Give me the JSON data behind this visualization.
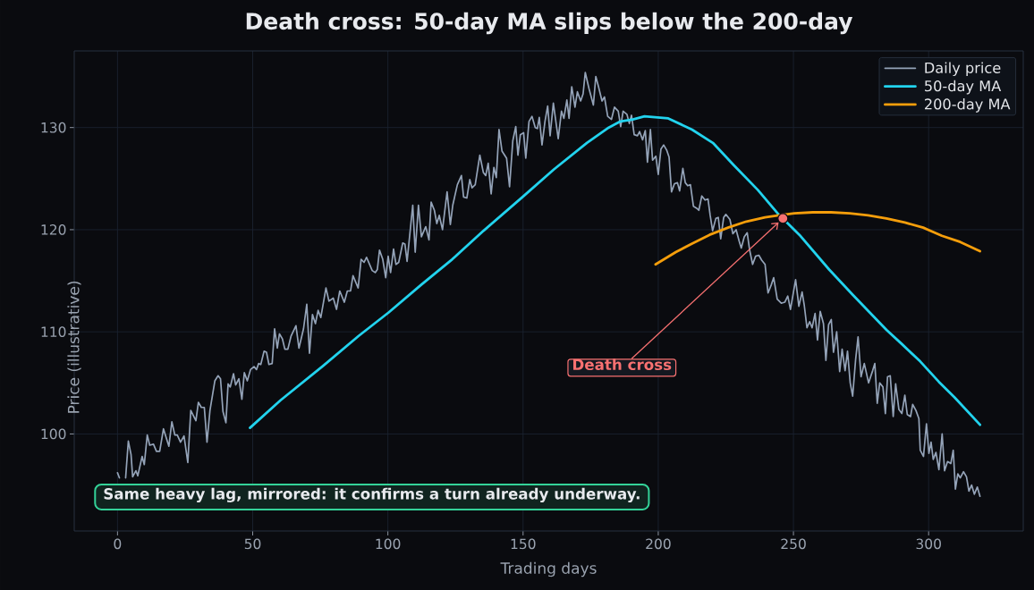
{
  "chart_data": {
    "type": "line",
    "title": "Death cross: 50-day MA slips below the 200-day",
    "xlabel": "Trading days",
    "ylabel": "Price (illustrative)",
    "xlim": [
      -16,
      335
    ],
    "ylim": [
      90.5,
      137.5
    ],
    "xticks": [
      0,
      50,
      100,
      150,
      200,
      250,
      300
    ],
    "yticks": [
      100,
      110,
      120,
      130
    ],
    "grid": true,
    "legend": "top right",
    "series": [
      {
        "name": "Daily price",
        "color": "#94a3b8",
        "x": [
          0,
          0.7,
          1.8,
          3.0,
          4.0,
          5.0,
          5.6,
          6.8,
          7.5,
          9.1,
          9.9,
          11.0,
          11.9,
          13.3,
          14.4,
          15.6,
          17.0,
          19.0,
          20.1,
          21.2,
          22.1,
          23.3,
          24.6,
          26.0,
          27.1,
          29.0,
          29.9,
          31.0,
          32.1,
          33.1,
          34.2,
          36.0,
          37.2,
          38.1,
          39.0,
          40.1,
          40.9,
          41.7,
          42.9,
          43.7,
          44.9,
          46.0,
          46.9,
          48.0,
          49.2,
          50.5,
          51.4,
          52.2,
          53.0,
          54.2,
          55.1,
          56.0,
          57.2,
          58.1,
          59.1,
          59.9,
          61.0,
          61.9,
          63.0,
          64.2,
          66.0,
          67.1,
          68.8,
          70.0,
          71.0,
          72.1,
          73.2,
          74.2,
          75.2,
          77.1,
          78.2,
          79.8,
          81.0,
          82.2,
          83.9,
          85.0,
          86.2,
          87.1,
          89.0,
          90.1,
          91.2,
          92.1,
          94.2,
          95.3,
          96.1,
          96.9,
          98.1,
          99.2,
          100.1,
          101.0,
          102.1,
          103.0,
          104.0,
          105.5,
          106.3,
          107.1,
          109.2,
          110.1,
          111.3,
          112.4,
          114.0,
          115.2,
          116.0,
          117.2,
          118.1,
          119.0,
          120.2,
          121.9,
          123.1,
          124.0,
          125.7,
          127.2,
          128.0,
          129.2,
          130.3,
          131.1,
          132.3,
          134.0,
          135.3,
          136.2,
          137.1,
          138.2,
          139.2,
          140.1,
          141.1,
          142.2,
          143.9,
          145.0,
          146.2,
          147.3,
          148.1,
          149.0,
          150.2,
          151.0,
          152.2,
          153.3,
          154.5,
          155.3,
          156.0,
          157.0,
          158.1,
          159.1,
          160.0,
          161.2,
          163.0,
          164.2,
          165.1,
          166.2,
          167.0,
          168.0,
          169.2,
          170.1,
          171.3,
          172.2,
          173.0,
          174.4,
          176.0,
          176.9,
          177.8,
          179.2,
          180.1,
          181.3,
          182.7,
          183.8,
          185.2,
          186.1,
          187.0,
          188.4,
          189.3,
          190.1,
          191.1,
          192.3,
          193.1,
          194.2,
          195.2,
          196.0,
          197.1,
          197.9,
          199.1,
          200.0,
          201.0,
          202.0,
          203.1,
          204.0,
          204.9,
          206.0,
          207.1,
          207.9,
          209.1,
          210.0,
          210.9,
          211.9,
          213.0,
          214.2,
          215.0,
          216.1,
          217.3,
          218.4,
          219.2,
          220.1,
          221.3,
          222.2,
          223.1,
          224.2,
          225.0,
          226.5,
          227.6,
          228.8,
          229.9,
          230.7,
          231.8,
          232.9,
          233.8,
          234.9,
          236.0,
          237.2,
          238.3,
          239.5,
          240.6,
          241.8,
          242.7,
          244.0,
          245.5,
          246.8,
          247.9,
          248.9,
          250.8,
          252.0,
          253.2,
          254.0,
          255.0,
          256.0,
          256.9,
          258.0,
          258.9,
          259.9,
          261.1,
          262.0,
          263.0,
          264.0,
          264.8,
          266.0,
          267.1,
          268.0,
          269.1,
          270.0,
          271.0,
          271.9,
          273.0,
          273.9,
          275.0,
          276.2,
          277.8,
          279.3,
          280.1,
          281.0,
          281.9,
          283.1,
          284.0,
          284.8,
          285.8,
          286.9,
          287.8,
          289.0,
          290.1,
          291.2,
          292.1,
          293.3,
          294.1,
          295.3,
          296.4,
          296.9,
          298.1,
          299.2,
          300.1,
          300.9,
          301.7,
          302.7,
          303.8,
          305.0,
          305.9,
          307.0,
          308.2,
          309.1,
          309.9,
          310.8,
          311.7,
          312.9,
          314.0,
          314.9,
          315.9,
          316.9,
          318.0,
          319.0
        ],
        "values": [
          96.2,
          95.7,
          null,
          95.7,
          99.3,
          98.0,
          95.8,
          96.4,
          95.9,
          97.8,
          97.0,
          99.9,
          98.9,
          99.0,
          98.3,
          98.3,
          100.5,
          98.8,
          101.2,
          99.9,
          99.9,
          99.2,
          99.8,
          97.2,
          102.3,
          101.3,
          103.1,
          102.6,
          102.6,
          99.2,
          102.3,
          105.2,
          105.7,
          105.4,
          102.2,
          101.1,
          104.9,
          104.6,
          105.9,
          104.8,
          105.4,
          103.4,
          106.0,
          105.2,
          106.3,
          106.6,
          106.3,
          106.9,
          106.8,
          108.1,
          108.0,
          106.8,
          106.9,
          110.3,
          108.4,
          109.8,
          109.3,
          108.3,
          108.3,
          109.6,
          110.6,
          108.4,
          110.3,
          112.7,
          107.9,
          111.7,
          110.8,
          112.1,
          111.4,
          114.3,
          113.0,
          113.3,
          112.2,
          114.0,
          112.9,
          114.0,
          114.0,
          115.5,
          114.3,
          117.1,
          116.8,
          117.3,
          116.0,
          115.8,
          116.1,
          118.0,
          117.1,
          115.3,
          117.4,
          115.8,
          118.1,
          116.6,
          116.8,
          118.7,
          118.6,
          116.9,
          122.4,
          117.8,
          122.4,
          119.3,
          120.3,
          119.0,
          122.7,
          121.9,
          120.6,
          121.4,
          120.0,
          123.7,
          120.5,
          122.4,
          124.4,
          125.3,
          123.2,
          123.1,
          124.9,
          124.1,
          124.4,
          127.3,
          125.6,
          125.3,
          126.5,
          123.5,
          126.1,
          125.1,
          129.8,
          127.7,
          127.0,
          124.2,
          128.7,
          130.1,
          127.3,
          129.3,
          129.5,
          127.0,
          130.6,
          131.1,
          130.0,
          129.9,
          131.0,
          128.3,
          130.6,
          132.1,
          129.2,
          132.4,
          128.9,
          131.6,
          130.9,
          132.7,
          130.9,
          134.0,
          132.0,
          133.5,
          132.6,
          133.3,
          135.4,
          133.8,
          132.2,
          135.0,
          134.1,
          132.6,
          133.0,
          131.1,
          130.8,
          132.0,
          131.6,
          130.1,
          131.6,
          131.3,
          130.4,
          131.2,
          129.3,
          129.2,
          129.6,
          128.8,
          129.7,
          126.6,
          129.8,
          126.8,
          127.2,
          125.4,
          127.9,
          128.3,
          127.8,
          127.1,
          123.7,
          124.5,
          124.6,
          123.8,
          126.0,
          124.6,
          124.3,
          124.4,
          122.3,
          122.1,
          121.9,
          123.3,
          122.9,
          123.0,
          121.4,
          119.9,
          121.1,
          121.2,
          119.1,
          121.2,
          121.5,
          121.0,
          119.6,
          120.0,
          118.9,
          118.2,
          119.3,
          119.7,
          118.0,
          116.6,
          117.4,
          117.5,
          117.0,
          116.6,
          113.8,
          114.6,
          115.3,
          113.2,
          112.8,
          112.9,
          113.5,
          112.2,
          115.1,
          112.5,
          113.9,
          112.6,
          110.4,
          111.0,
          110.4,
          111.8,
          109.2,
          112.0,
          110.8,
          107.2,
          110.7,
          111.2,
          108.0,
          110.0,
          106.1,
          108.3,
          106.2,
          108.1,
          105.0,
          103.7,
          107.3,
          109.5,
          105.6,
          106.9,
          105.0,
          106.2,
          106.9,
          103.0,
          105.0,
          104.6,
          102.0,
          105.6,
          105.7,
          101.7,
          104.9,
          102.4,
          102.0,
          103.8,
          101.9,
          101.7,
          102.9,
          102.3,
          101.5,
          98.4,
          97.8,
          101.0,
          98.1,
          99.2,
          97.5,
          98.2,
          96.5,
          100.0,
          96.4,
          97.3,
          97.1,
          98.4,
          94.6,
          96.1,
          95.7,
          96.3,
          95.8,
          94.4,
          95.0,
          94.1,
          94.8,
          93.9
        ]
      },
      {
        "name": "50-day MA",
        "color": "#22d3ee",
        "x": [
          49,
          60.3,
          76.2,
          89.2,
          100.3,
          112.3,
          123.8,
          135.4,
          149.8,
          161.4,
          173.6,
          181.7,
          186.0,
          190.6,
          194.9,
          203.7,
          212.5,
          220.2,
          228.0,
          236.8,
          244.5,
          252.2,
          263.2,
          272.0,
          284.4,
          290.1,
          296.9,
          303.8,
          309.5,
          319.0
        ],
        "values": [
          100.6,
          103.3,
          106.7,
          109.6,
          111.9,
          114.6,
          117.1,
          119.9,
          123.2,
          125.9,
          128.5,
          130.0,
          130.6,
          130.8,
          131.1,
          130.9,
          129.8,
          128.5,
          126.3,
          123.9,
          121.5,
          119.5,
          116.1,
          113.6,
          110.2,
          108.8,
          107.1,
          105.1,
          103.6,
          100.9
        ]
      },
      {
        "name": "200-day MA",
        "color": "#f59e0b",
        "x": [
          199,
          206.5,
          212.2,
          219.0,
          225.8,
          232.6,
          239.5,
          244.6,
          250.3,
          257.1,
          263.9,
          270.8,
          277.6,
          284.4,
          291.2,
          298.0,
          304.9,
          311.7,
          319.0
        ],
        "values": [
          116.6,
          117.8,
          118.6,
          119.5,
          120.2,
          120.8,
          121.2,
          121.4,
          121.6,
          121.7,
          121.7,
          121.6,
          121.4,
          121.1,
          120.7,
          120.2,
          119.4,
          118.8,
          117.9
        ]
      },
      {
        "type": "scatter",
        "color": "#f87171",
        "marker": "circle",
        "x": [
          246.1
        ],
        "values": [
          121.1
        ]
      }
    ],
    "annotations": [
      {
        "text": "Death cross",
        "x": 246.1,
        "y": 121.1
      },
      "Same heavy lag, mirrored: it confirms a turn already underway."
    ]
  }
}
